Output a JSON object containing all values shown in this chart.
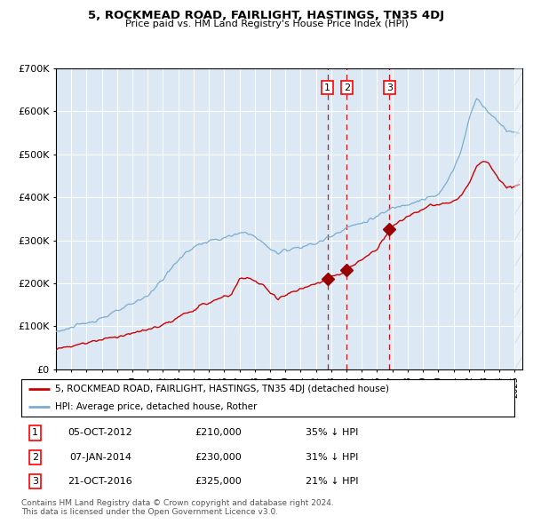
{
  "title": "5, ROCKMEAD ROAD, FAIRLIGHT, HASTINGS, TN35 4DJ",
  "subtitle": "Price paid vs. HM Land Registry's House Price Index (HPI)",
  "legend_label_red": "5, ROCKMEAD ROAD, FAIRLIGHT, HASTINGS, TN35 4DJ (detached house)",
  "legend_label_blue": "HPI: Average price, detached house, Rother",
  "transactions": [
    {
      "num": 1,
      "date": "05-OCT-2012",
      "date_val": 2012.76,
      "price": 210000,
      "pct": "35%",
      "dir": "↓"
    },
    {
      "num": 2,
      "date": "07-JAN-2014",
      "date_val": 2014.02,
      "price": 230000,
      "pct": "31%",
      "dir": "↓"
    },
    {
      "num": 3,
      "date": "21-OCT-2016",
      "date_val": 2016.8,
      "price": 325000,
      "pct": "21%",
      "dir": "↓"
    }
  ],
  "footer1": "Contains HM Land Registry data © Crown copyright and database right 2024.",
  "footer2": "This data is licensed under the Open Government Licence v3.0.",
  "bg_color": "#dce9f5",
  "red_color": "#cc0000",
  "blue_color": "#7aadcf",
  "marker_color": "#990000",
  "vline_color": "#cc0000",
  "grid_color": "#ffffff",
  "ylim": [
    0,
    700000
  ],
  "xlim_start": 1995.0,
  "xlim_end": 2025.5,
  "hpi_anchors_x": [
    1995.0,
    1996.0,
    1997.0,
    1998.0,
    1999.0,
    2000.0,
    2001.0,
    2002.0,
    2003.0,
    2004.0,
    2005.0,
    2006.0,
    2007.0,
    2007.5,
    2008.5,
    2009.5,
    2010.0,
    2011.0,
    2012.0,
    2013.0,
    2014.0,
    2015.0,
    2016.0,
    2017.0,
    2018.0,
    2019.0,
    2020.0,
    2020.5,
    2021.0,
    2021.5,
    2022.0,
    2022.5,
    2023.0,
    2023.5,
    2024.0,
    2024.5,
    2025.3
  ],
  "hpi_anchors_y": [
    88000,
    97000,
    108000,
    120000,
    135000,
    152000,
    172000,
    210000,
    255000,
    285000,
    298000,
    305000,
    315000,
    320000,
    295000,
    268000,
    278000,
    285000,
    292000,
    310000,
    330000,
    340000,
    355000,
    375000,
    385000,
    395000,
    405000,
    430000,
    465000,
    510000,
    580000,
    630000,
    610000,
    590000,
    575000,
    555000,
    548000
  ],
  "red_anchors_x": [
    1995.0,
    1996.5,
    1998.0,
    1999.5,
    2001.0,
    2002.5,
    2003.5,
    2004.5,
    2005.5,
    2006.5,
    2007.0,
    2007.5,
    2008.5,
    2009.5,
    2010.5,
    2011.5,
    2012.0,
    2012.76,
    2013.5,
    2014.02,
    2015.0,
    2016.0,
    2016.8,
    2017.5,
    2018.5,
    2019.5,
    2020.5,
    2021.0,
    2021.5,
    2022.0,
    2022.5,
    2023.0,
    2023.3,
    2023.7,
    2024.0,
    2024.5,
    2025.3
  ],
  "red_anchors_y": [
    48000,
    58000,
    70000,
    80000,
    92000,
    110000,
    130000,
    148000,
    162000,
    175000,
    210000,
    215000,
    195000,
    165000,
    180000,
    192000,
    198000,
    210000,
    220000,
    230000,
    255000,
    280000,
    325000,
    345000,
    365000,
    380000,
    385000,
    390000,
    405000,
    430000,
    470000,
    485000,
    480000,
    455000,
    440000,
    420000,
    430000
  ]
}
